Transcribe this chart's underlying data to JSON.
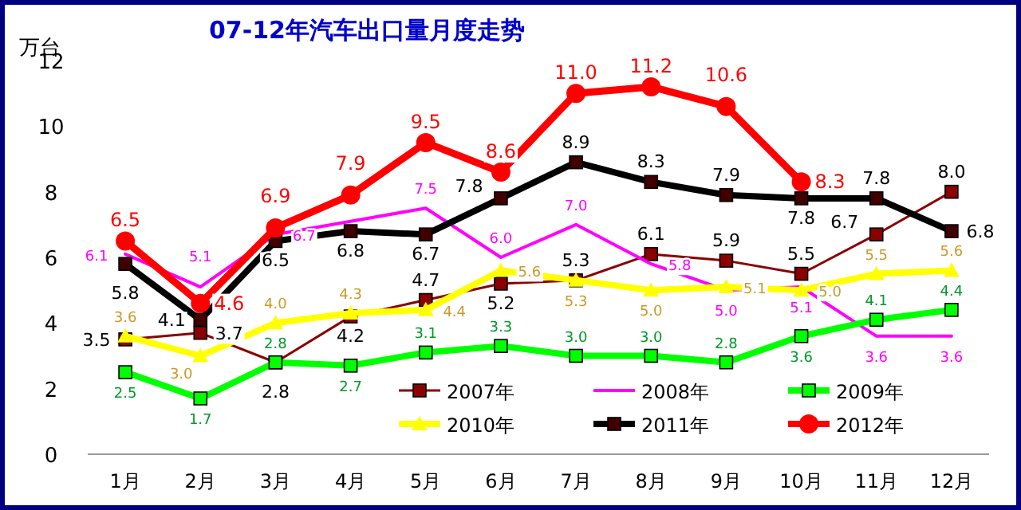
{
  "chart_data": {
    "type": "line",
    "title": "07-12年汽车出口量月度走势",
    "ylabel": "万台",
    "categories": [
      "1月",
      "2月",
      "3月",
      "4月",
      "5月",
      "6月",
      "7月",
      "8月",
      "9月",
      "10月",
      "11月",
      "12月"
    ],
    "ylim": [
      0,
      12
    ],
    "yticks": [
      0,
      2,
      4,
      6,
      8,
      10,
      12
    ],
    "grid": false,
    "legend": "bottom",
    "series": [
      {
        "name": "2007年",
        "color": "#8b0000",
        "marker": "square",
        "values": [
          3.5,
          3.7,
          2.8,
          4.2,
          4.7,
          5.2,
          5.3,
          6.1,
          5.9,
          5.5,
          6.7,
          8.0
        ],
        "value_labels": [
          "3.5",
          "3.7",
          "2.8",
          "4.2",
          "4.7",
          "5.2",
          "5.3",
          "6.1",
          "5.9",
          "5.5",
          "6.7",
          "8.0"
        ]
      },
      {
        "name": "2008年",
        "color": "#ff00ff",
        "marker": "none",
        "values": [
          6.1,
          5.1,
          6.7,
          7.1,
          7.5,
          6.0,
          7.0,
          5.8,
          5.0,
          5.1,
          3.6,
          3.6
        ],
        "value_labels": [
          "6.1",
          "5.1",
          "6.7",
          null,
          "7.5",
          "6.0",
          "7.0",
          "5.8",
          "5.0",
          "5.1",
          "3.6",
          "3.6"
        ]
      },
      {
        "name": "2009年",
        "color": "#00ff00",
        "marker": "square",
        "values": [
          2.5,
          1.7,
          2.8,
          2.7,
          3.1,
          3.3,
          3.0,
          3.0,
          2.8,
          3.6,
          4.1,
          4.4
        ],
        "value_labels": [
          "2.5",
          "1.7",
          "2.8",
          "2.7",
          "3.1",
          "3.3",
          "3.0",
          "3.0",
          "2.8",
          "3.6",
          "4.1",
          "4.4"
        ]
      },
      {
        "name": "2010年",
        "color": "#ffff00",
        "marker": "triangle",
        "values": [
          3.6,
          3.0,
          4.0,
          4.3,
          4.4,
          5.6,
          5.3,
          5.0,
          5.1,
          5.0,
          5.5,
          5.6
        ],
        "value_labels": [
          "3.6",
          "3.0",
          "4.0",
          "4.3",
          "4.4",
          "5.6",
          "5.3",
          "5.0",
          "5.1",
          "5.0",
          "5.5",
          "5.6"
        ]
      },
      {
        "name": "2011年",
        "color": "#000000",
        "marker": "square",
        "values": [
          5.8,
          4.1,
          6.5,
          6.8,
          6.7,
          7.8,
          8.9,
          8.3,
          7.9,
          7.8,
          7.8,
          6.8
        ],
        "value_labels": [
          "5.8",
          "4.1",
          "6.5",
          "6.8",
          "6.7",
          "7.8",
          "8.9",
          "8.3",
          "7.9",
          "7.8",
          "7.8",
          "6.8"
        ]
      },
      {
        "name": "2012年",
        "color": "#ff0000",
        "marker": "circle",
        "values": [
          6.5,
          4.6,
          6.9,
          7.9,
          9.5,
          8.6,
          11.0,
          11.2,
          10.6,
          8.3,
          null,
          null
        ],
        "value_labels": [
          "6.5",
          "4.6",
          "6.9",
          "7.9",
          "9.5",
          "8.6",
          "11.0",
          "11.2",
          "10.6",
          "8.3",
          null,
          null
        ]
      }
    ]
  }
}
